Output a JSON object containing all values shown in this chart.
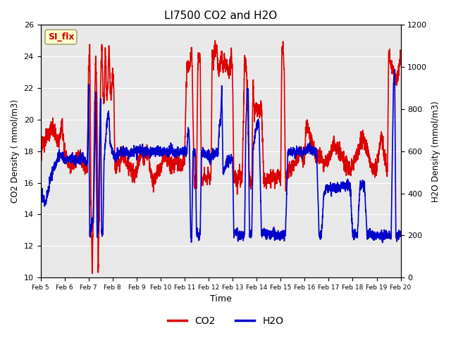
{
  "title": "LI7500 CO2 and H2O",
  "xlabel": "Time",
  "ylabel_left": "CO2 Density ( mmol/m3)",
  "ylabel_right": "H2O Density (mmol/m3)",
  "ylim_left": [
    10,
    26
  ],
  "ylim_right": [
    0,
    1200
  ],
  "yticks_left": [
    10,
    12,
    14,
    16,
    18,
    20,
    22,
    24,
    26
  ],
  "yticks_right": [
    0,
    200,
    400,
    600,
    800,
    1000,
    1200
  ],
  "xticklabels": [
    "Feb 5",
    "Feb 6",
    "Feb 7",
    "Feb 8",
    "Feb 9",
    "Feb 10",
    "Feb 11",
    "Feb 12",
    "Feb 13",
    "Feb 14",
    "Feb 15",
    "Feb 16",
    "Feb 17",
    "Feb 18",
    "Feb 19",
    "Feb 20"
  ],
  "co2_color": "#dd0000",
  "h2o_color": "#0000cc",
  "legend_label_co2": "CO2",
  "legend_label_h2o": "H2O",
  "annotation_text": "SI_flx",
  "background_color": "#e8e8e8",
  "line_width": 1.2
}
